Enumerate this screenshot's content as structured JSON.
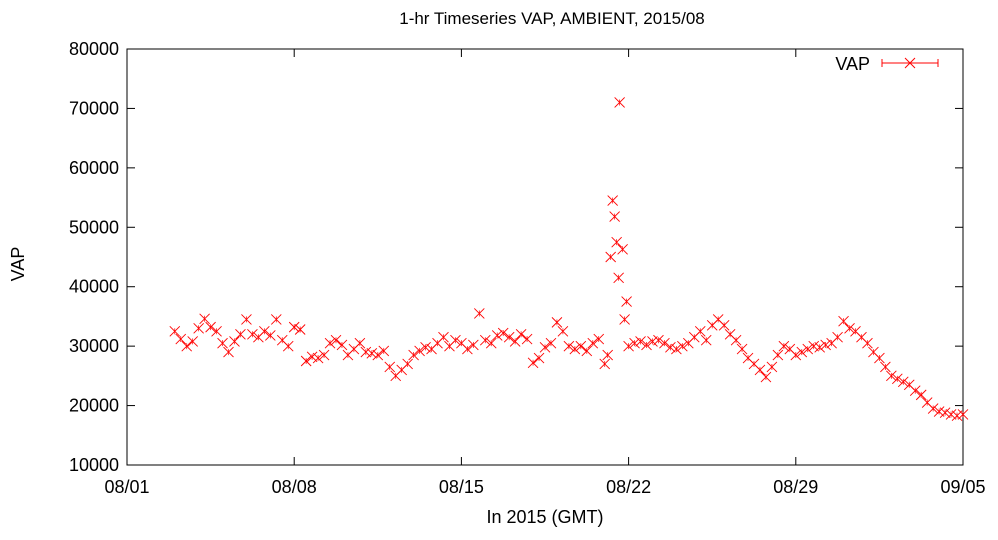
{
  "chart_data": {
    "type": "scatter",
    "title": "1-hr Timeseries VAP, AMBIENT, 2015/08",
    "xlabel": "In 2015 (GMT)",
    "ylabel": "VAP",
    "x_ticks": [
      "08/01",
      "08/08",
      "08/15",
      "08/22",
      "08/29",
      "09/05"
    ],
    "x_range": [
      "2015-08-01",
      "2015-09-05"
    ],
    "y_ticks": [
      10000,
      20000,
      30000,
      40000,
      50000,
      60000,
      70000,
      80000
    ],
    "ylim": [
      10000,
      80000
    ],
    "grid": false,
    "legend_position": "top-right",
    "series": [
      {
        "name": "VAP",
        "color": "#ff0000",
        "marker": "x",
        "error_bars": true,
        "points": [
          [
            "2015-08-03T00:00",
            32500
          ],
          [
            "2015-08-03T06:00",
            31200
          ],
          [
            "2015-08-03T12:00",
            30000
          ],
          [
            "2015-08-03T18:00",
            30800
          ],
          [
            "2015-08-04T00:00",
            33000
          ],
          [
            "2015-08-04T06:00",
            34600
          ],
          [
            "2015-08-04T12:00",
            33200
          ],
          [
            "2015-08-04T18:00",
            32500
          ],
          [
            "2015-08-05T00:00",
            30500
          ],
          [
            "2015-08-05T06:00",
            29000
          ],
          [
            "2015-08-05T12:00",
            30800
          ],
          [
            "2015-08-05T18:00",
            32000
          ],
          [
            "2015-08-06T00:00",
            34500
          ],
          [
            "2015-08-06T06:00",
            32000
          ],
          [
            "2015-08-06T12:00",
            31500
          ],
          [
            "2015-08-06T18:00",
            32500
          ],
          [
            "2015-08-07T00:00",
            31800
          ],
          [
            "2015-08-07T06:00",
            34500
          ],
          [
            "2015-08-07T12:00",
            31000
          ],
          [
            "2015-08-07T18:00",
            30000
          ],
          [
            "2015-08-08T00:00",
            33200
          ],
          [
            "2015-08-08T06:00",
            32800
          ],
          [
            "2015-08-08T12:00",
            27500
          ],
          [
            "2015-08-08T18:00",
            28200
          ],
          [
            "2015-08-09T00:00",
            28000
          ],
          [
            "2015-08-09T06:00",
            28500
          ],
          [
            "2015-08-09T12:00",
            30500
          ],
          [
            "2015-08-09T18:00",
            31000
          ],
          [
            "2015-08-10T00:00",
            30200
          ],
          [
            "2015-08-10T06:00",
            28500
          ],
          [
            "2015-08-10T12:00",
            29500
          ],
          [
            "2015-08-10T18:00",
            30500
          ],
          [
            "2015-08-11T00:00",
            29000
          ],
          [
            "2015-08-11T06:00",
            28800
          ],
          [
            "2015-08-11T12:00",
            28500
          ],
          [
            "2015-08-11T18:00",
            29200
          ],
          [
            "2015-08-12T00:00",
            26500
          ],
          [
            "2015-08-12T06:00",
            25000
          ],
          [
            "2015-08-12T12:00",
            26000
          ],
          [
            "2015-08-12T18:00",
            27000
          ],
          [
            "2015-08-13T00:00",
            28500
          ],
          [
            "2015-08-13T06:00",
            29200
          ],
          [
            "2015-08-13T12:00",
            29800
          ],
          [
            "2015-08-13T18:00",
            29500
          ],
          [
            "2015-08-14T00:00",
            30500
          ],
          [
            "2015-08-14T06:00",
            31500
          ],
          [
            "2015-08-14T12:00",
            30000
          ],
          [
            "2015-08-14T18:00",
            31000
          ],
          [
            "2015-08-15T00:00",
            30500
          ],
          [
            "2015-08-15T06:00",
            29500
          ],
          [
            "2015-08-15T12:00",
            30200
          ],
          [
            "2015-08-15T18:00",
            35500
          ],
          [
            "2015-08-16T00:00",
            31000
          ],
          [
            "2015-08-16T06:00",
            30500
          ],
          [
            "2015-08-16T12:00",
            31800
          ],
          [
            "2015-08-16T18:00",
            32200
          ],
          [
            "2015-08-17T00:00",
            31500
          ],
          [
            "2015-08-17T06:00",
            30800
          ],
          [
            "2015-08-17T12:00",
            32000
          ],
          [
            "2015-08-17T18:00",
            31200
          ],
          [
            "2015-08-18T00:00",
            27200
          ],
          [
            "2015-08-18T06:00",
            28000
          ],
          [
            "2015-08-18T12:00",
            29800
          ],
          [
            "2015-08-18T18:00",
            30500
          ],
          [
            "2015-08-19T00:00",
            34000
          ],
          [
            "2015-08-19T06:00",
            32500
          ],
          [
            "2015-08-19T12:00",
            30000
          ],
          [
            "2015-08-19T18:00",
            29500
          ],
          [
            "2015-08-20T00:00",
            30000
          ],
          [
            "2015-08-20T06:00",
            29200
          ],
          [
            "2015-08-20T12:00",
            30500
          ],
          [
            "2015-08-20T18:00",
            31200
          ],
          [
            "2015-08-21T00:00",
            27000
          ],
          [
            "2015-08-21T03:00",
            28500
          ],
          [
            "2015-08-21T06:00",
            45000
          ],
          [
            "2015-08-21T08:00",
            54500
          ],
          [
            "2015-08-21T10:00",
            51800
          ],
          [
            "2015-08-21T12:00",
            47500
          ],
          [
            "2015-08-21T14:00",
            41500
          ],
          [
            "2015-08-21T15:00",
            71000
          ],
          [
            "2015-08-21T18:00",
            46300
          ],
          [
            "2015-08-21T20:00",
            34500
          ],
          [
            "2015-08-21T22:00",
            37500
          ],
          [
            "2015-08-22T00:00",
            30000
          ],
          [
            "2015-08-22T06:00",
            30500
          ],
          [
            "2015-08-22T12:00",
            30800
          ],
          [
            "2015-08-22T18:00",
            30200
          ],
          [
            "2015-08-23T00:00",
            30800
          ],
          [
            "2015-08-23T06:00",
            31000
          ],
          [
            "2015-08-23T12:00",
            30500
          ],
          [
            "2015-08-23T18:00",
            29800
          ],
          [
            "2015-08-24T00:00",
            29500
          ],
          [
            "2015-08-24T06:00",
            30000
          ],
          [
            "2015-08-24T12:00",
            30500
          ],
          [
            "2015-08-24T18:00",
            31500
          ],
          [
            "2015-08-25T00:00",
            32500
          ],
          [
            "2015-08-25T06:00",
            31000
          ],
          [
            "2015-08-25T12:00",
            33500
          ],
          [
            "2015-08-25T18:00",
            34500
          ],
          [
            "2015-08-26T00:00",
            33500
          ],
          [
            "2015-08-26T06:00",
            32000
          ],
          [
            "2015-08-26T12:00",
            31000
          ],
          [
            "2015-08-26T18:00",
            29500
          ],
          [
            "2015-08-27T00:00",
            28000
          ],
          [
            "2015-08-27T06:00",
            27000
          ],
          [
            "2015-08-27T12:00",
            26000
          ],
          [
            "2015-08-27T18:00",
            24800
          ],
          [
            "2015-08-28T00:00",
            26500
          ],
          [
            "2015-08-28T06:00",
            28500
          ],
          [
            "2015-08-28T12:00",
            30000
          ],
          [
            "2015-08-28T18:00",
            29500
          ],
          [
            "2015-08-29T00:00",
            28500
          ],
          [
            "2015-08-29T06:00",
            29000
          ],
          [
            "2015-08-29T12:00",
            29500
          ],
          [
            "2015-08-29T18:00",
            30000
          ],
          [
            "2015-08-30T00:00",
            29800
          ],
          [
            "2015-08-30T06:00",
            30200
          ],
          [
            "2015-08-30T12:00",
            30500
          ],
          [
            "2015-08-30T18:00",
            31500
          ],
          [
            "2015-08-31T00:00",
            34200
          ],
          [
            "2015-08-31T06:00",
            33000
          ],
          [
            "2015-08-31T12:00",
            32500
          ],
          [
            "2015-08-31T18:00",
            31500
          ],
          [
            "2015-09-01T00:00",
            30500
          ],
          [
            "2015-09-01T06:00",
            29000
          ],
          [
            "2015-09-01T12:00",
            28000
          ],
          [
            "2015-09-01T18:00",
            26500
          ],
          [
            "2015-09-02T00:00",
            25000
          ],
          [
            "2015-09-02T06:00",
            24500
          ],
          [
            "2015-09-02T12:00",
            24000
          ],
          [
            "2015-09-02T18:00",
            23500
          ],
          [
            "2015-09-03T00:00",
            22500
          ],
          [
            "2015-09-03T06:00",
            21800
          ],
          [
            "2015-09-03T12:00",
            20500
          ],
          [
            "2015-09-03T18:00",
            19500
          ],
          [
            "2015-09-04T00:00",
            19000
          ],
          [
            "2015-09-04T06:00",
            18800
          ],
          [
            "2015-09-04T12:00",
            18500
          ],
          [
            "2015-09-04T18:00",
            18300
          ],
          [
            "2015-09-05T00:00",
            18500
          ]
        ]
      }
    ]
  }
}
